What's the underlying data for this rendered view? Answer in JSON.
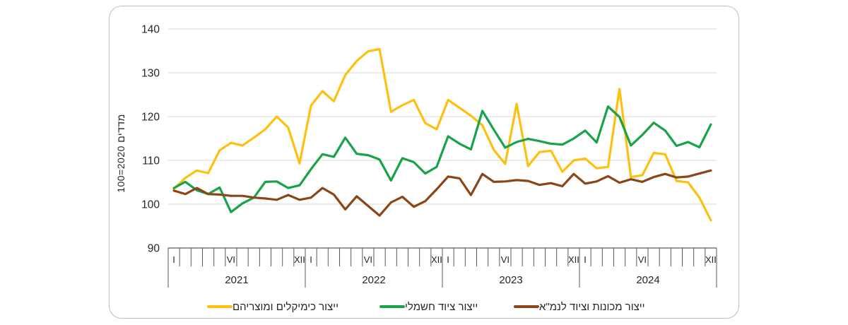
{
  "chart_data": {
    "type": "line",
    "title": "",
    "ylabel": "מדדים 2020=100",
    "ylim": [
      90,
      140
    ],
    "y_tick_labels": [
      "90",
      "100",
      "110",
      "120",
      "130",
      "140"
    ],
    "x_years": [
      "2021",
      "2022",
      "2023",
      "2024"
    ],
    "x_month_labels": [
      {
        "month": 1,
        "label": "I"
      },
      {
        "month": 6,
        "label": "VI"
      },
      {
        "month": 12,
        "label": "XII"
      }
    ],
    "x_range": "monthly, Jan 2021 - Dec 2024",
    "grid": "horizontal",
    "legend_position": "bottom",
    "colors": {
      "grid": "#d9d9d9",
      "axis": "#595959",
      "text": "#262626"
    },
    "series": [
      {
        "name": "ייצור כימיקלים ומוצריהם",
        "color": "#fdc00f",
        "values": [
          103.5,
          106.0,
          107.7,
          107.1,
          112.3,
          114.0,
          113.4,
          115.2,
          117.1,
          120.0,
          117.5,
          109.3,
          122.5,
          125.8,
          123.5,
          129.5,
          132.7,
          134.9,
          135.4,
          121.1,
          122.6,
          123.8,
          118.5,
          117.1,
          123.8,
          122.0,
          120.2,
          118.0,
          112.4,
          109.2,
          122.9,
          108.7,
          111.9,
          112.2,
          107.4,
          110.0,
          110.4,
          108.2,
          108.5,
          126.3,
          106.2,
          106.6,
          111.7,
          111.4,
          105.3,
          105.0,
          101.5,
          96.3
        ]
      },
      {
        "name": "ייצור ציוד חשמלי",
        "color": "#18a349",
        "values": [
          103.7,
          105.1,
          103.2,
          102.3,
          103.8,
          98.2,
          100.2,
          101.5,
          105.1,
          105.2,
          103.7,
          104.3,
          108.0,
          111.4,
          110.8,
          115.2,
          111.5,
          111.2,
          110.2,
          105.4,
          110.5,
          109.6,
          107.0,
          108.5,
          115.5,
          113.8,
          112.5,
          121.3,
          117.0,
          112.9,
          114.2,
          114.9,
          114.4,
          113.8,
          113.6,
          115.0,
          116.8,
          114.1,
          122.3,
          119.9,
          113.4,
          115.8,
          118.6,
          116.8,
          113.3,
          114.2,
          113.0,
          118.2
        ]
      },
      {
        "name": "ייצור מכונות וציוד לנמ\"א",
        "color": "#8a4617",
        "values": [
          103.1,
          102.3,
          103.7,
          102.3,
          102.2,
          101.9,
          101.9,
          101.5,
          101.3,
          101.0,
          102.1,
          101.0,
          101.5,
          103.7,
          102.2,
          98.8,
          101.8,
          99.6,
          97.4,
          100.4,
          101.7,
          99.4,
          100.7,
          103.4,
          106.3,
          105.9,
          102.1,
          106.9,
          105.1,
          105.2,
          105.5,
          105.3,
          104.4,
          104.8,
          104.1,
          106.9,
          104.7,
          105.2,
          106.4,
          104.9,
          105.7,
          105.1,
          106.2,
          106.9,
          106.1,
          106.3,
          107.0,
          107.7
        ]
      }
    ]
  }
}
